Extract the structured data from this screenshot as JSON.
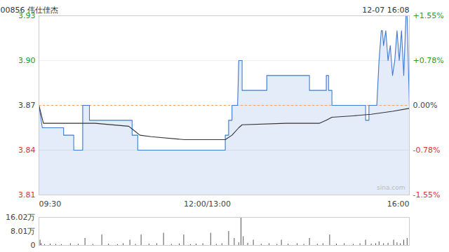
{
  "chart_data": [
    {
      "type": "line",
      "title": "00856 伟仕佳杰",
      "subtitle": "12-07 16:08",
      "annotations": [
        "sina.com"
      ],
      "reference": 3.87,
      "grid": true,
      "xlim": [
        0,
        330
      ],
      "xticks": [
        {
          "value": 0,
          "label": "09:30"
        },
        {
          "value": 150,
          "label": "12:00/13:00"
        },
        {
          "value": 330,
          "label": "16:00"
        }
      ],
      "ylim": [
        3.81,
        3.93
      ],
      "yticks": [
        3.81,
        3.84,
        3.87,
        {
          "value": 3.9,
          "label": "3.90"
        },
        3.93
      ],
      "y2lim": [
        -1.55,
        1.55
      ],
      "y2ticks": [
        {
          "value": -1.55,
          "label": "-1.55%"
        },
        {
          "value": -0.78,
          "label": "-0.78%"
        },
        {
          "value": 0,
          "label": "0.00%"
        },
        {
          "value": 0.78,
          "label": "+0.78%"
        },
        {
          "value": 1.55,
          "label": "+1.55%"
        }
      ],
      "series": [
        {
          "color": "#3f78d6",
          "x": [
            0,
            3,
            22,
            22,
            31,
            31,
            39,
            39,
            45,
            45,
            83,
            83,
            88,
            88,
            166,
            166,
            169,
            169,
            172,
            172,
            177,
            178,
            181,
            181,
            203,
            203,
            241,
            241,
            256,
            256,
            258,
            258,
            261,
            261,
            291,
            291,
            294,
            294,
            301,
            303,
            305,
            306,
            307,
            309,
            311,
            313,
            315,
            317,
            319,
            321,
            323,
            325,
            327,
            328,
            329,
            330
          ],
          "values": [
            3.87,
            3.855,
            3.855,
            3.85,
            3.85,
            3.84,
            3.84,
            3.87,
            3.87,
            3.86,
            3.86,
            3.85,
            3.85,
            3.84,
            3.84,
            3.85,
            3.85,
            3.86,
            3.86,
            3.87,
            3.87,
            3.9,
            3.9,
            3.88,
            3.88,
            3.89,
            3.89,
            3.88,
            3.88,
            3.89,
            3.89,
            3.88,
            3.88,
            3.87,
            3.87,
            3.86,
            3.86,
            3.87,
            3.87,
            3.9,
            3.92,
            3.92,
            3.91,
            3.92,
            3.9,
            3.91,
            3.89,
            3.9,
            3.92,
            3.9,
            3.92,
            3.89,
            3.93,
            3.93,
            3.9,
            3.87
          ]
        },
        {
          "color": "#333333",
          "x": [
            0,
            4,
            20,
            50,
            80,
            85,
            90,
            100,
            130,
            166,
            172,
            178,
            181,
            220,
            250,
            256,
            261,
            280,
            296,
            315,
            330
          ],
          "values": [
            3.87,
            3.858,
            3.858,
            3.858,
            3.856,
            3.853,
            3.85,
            3.849,
            3.847,
            3.847,
            3.85,
            3.855,
            3.857,
            3.858,
            3.858,
            3.86,
            3.862,
            3.863,
            3.864,
            3.866,
            3.868
          ]
        }
      ]
    },
    {
      "type": "bar",
      "color": "#555555",
      "xlim": [
        0,
        330
      ],
      "ylim": [
        0,
        16.02
      ],
      "yticks": [
        0,
        {
          "value": 8.01,
          "label": "8.01万"
        },
        {
          "value": 16.02,
          "label": "16.02万"
        }
      ],
      "x": [
        1,
        2,
        5,
        10,
        15,
        20,
        28,
        35,
        41,
        48,
        56,
        62,
        70,
        75,
        81,
        86,
        91,
        98,
        105,
        111,
        118,
        125,
        129,
        135,
        140,
        146,
        153,
        158,
        163,
        169,
        174,
        178,
        180,
        182,
        186,
        191,
        198,
        205,
        212,
        216,
        222,
        230,
        236,
        241,
        248,
        253,
        259,
        265,
        272,
        280,
        286,
        291,
        296,
        300,
        303,
        307,
        311,
        316,
        319,
        322,
        325,
        328,
        330
      ],
      "values": [
        3,
        1,
        0.5,
        0.8,
        0.6,
        0.5,
        1,
        0.7,
        4,
        0.6,
        6,
        0.8,
        0.5,
        1,
        3,
        0.6,
        6,
        0.8,
        1,
        7,
        0.6,
        0.9,
        6,
        0.5,
        0.8,
        1,
        7,
        0.6,
        1,
        8,
        4,
        1.5,
        16.02,
        5,
        1.2,
        3,
        0.7,
        1,
        0.6,
        3,
        0.8,
        1,
        0.6,
        4,
        0.7,
        1,
        6,
        0.8,
        1,
        0.6,
        1,
        3,
        0.8,
        1,
        2,
        1,
        1.2,
        3,
        1.5,
        1,
        3,
        4,
        1
      ]
    }
  ]
}
